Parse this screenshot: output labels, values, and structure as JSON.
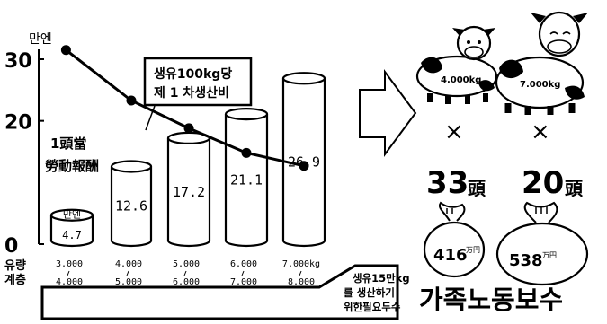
{
  "chart_data": {
    "type": "bar",
    "y_unit": "만엔",
    "yticks": [
      0,
      20,
      30
    ],
    "ylim": [
      0,
      33
    ],
    "categories_row1": [
      "3.000",
      "4.000",
      "5.000",
      "6.000",
      "7.000kg"
    ],
    "categories_row2": [
      "4.000",
      "5.000",
      "6.000",
      "7.000",
      "8.000"
    ],
    "xlabel_row1": "유량",
    "xlabel_row2": "계층",
    "bars": {
      "name": "1頭當\n勞動報酬",
      "values": [
        4.7,
        12.6,
        17.2,
        21.1,
        26.9
      ],
      "labels": [
        "4.7",
        "12.6",
        "17.2",
        "21.1",
        "26.9"
      ],
      "first_bar_unit": "만엔"
    },
    "line": {
      "name": "생유100kg당\n제 1 차생산비",
      "x_index": [
        0,
        1,
        2,
        3,
        4
      ],
      "values": [
        31.5,
        23.3,
        18.8,
        14.8,
        12.7
      ],
      "start_offset": -0.1
    },
    "footer_note": "생유15만kg\n를 생산하기\n위한필요두수"
  },
  "cows": [
    {
      "weight": "4.000kg",
      "count_num": "33",
      "count_unit": "頭",
      "mult": "×",
      "bag_value": "416",
      "bag_unit": "万円"
    },
    {
      "weight": "7.000kg",
      "count_num": "20",
      "count_unit": "頭",
      "mult": "×",
      "bag_value": "538",
      "bag_unit": "万円"
    }
  ],
  "caption": "가족노동보수"
}
